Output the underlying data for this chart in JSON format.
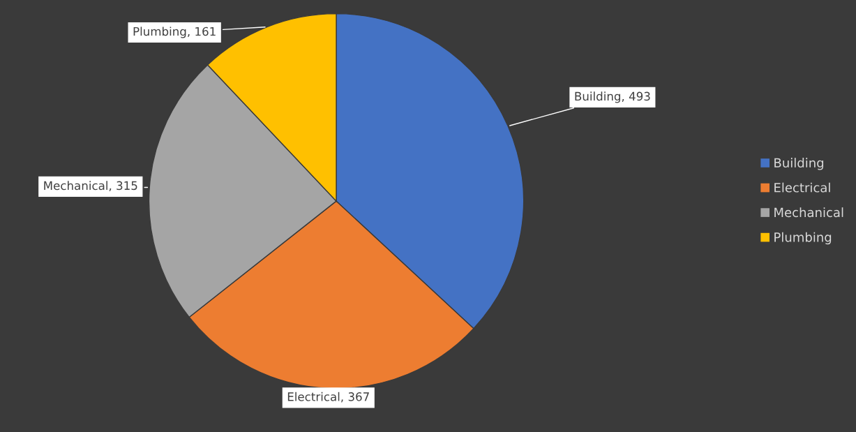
{
  "chart_data": {
    "type": "pie",
    "categories": [
      "Building",
      "Electrical",
      "Mechanical",
      "Plumbing"
    ],
    "values": [
      493,
      367,
      315,
      161
    ],
    "colors": [
      "#4472c4",
      "#ed7d31",
      "#a5a5a5",
      "#ffc000"
    ],
    "value_labels": [
      "Building, 493",
      "Electrical, 367",
      "Mechanical, 315",
      "Plumbing, 161"
    ],
    "legend": "right"
  }
}
